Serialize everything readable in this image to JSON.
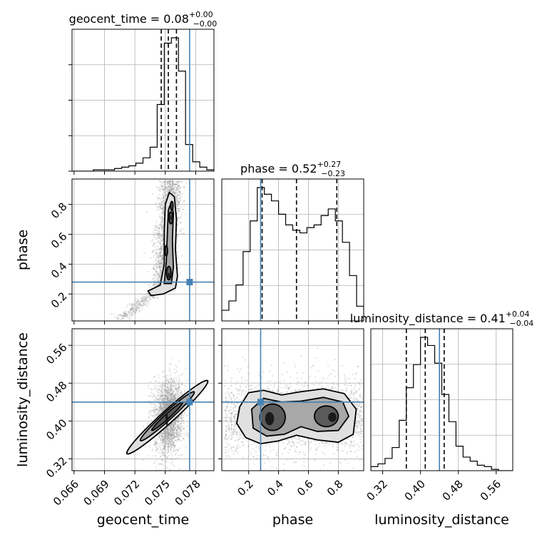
{
  "chart_data": {
    "type": "corner",
    "parameters": [
      "geocent_time",
      "phase",
      "luminosity_distance"
    ],
    "titles": [
      {
        "param": "geocent_time",
        "median": "0.08",
        "plus": "+0.00",
        "minus": "−0.00"
      },
      {
        "param": "phase",
        "median": "0.52",
        "plus": "+0.27",
        "minus": "−0.23"
      },
      {
        "param": "luminosity_distance",
        "median": "0.41",
        "plus": "+0.04",
        "minus": "−0.04"
      }
    ],
    "axes": {
      "geocent_time": {
        "range": [
          0.0658,
          0.0798
        ],
        "ticks": [
          "0.066",
          "0.069",
          "0.072",
          "0.075",
          "0.078"
        ],
        "tick_values": [
          0.066,
          0.069,
          0.072,
          0.075,
          0.078
        ]
      },
      "phase": {
        "range": [
          0.02,
          0.97
        ],
        "ticks": [
          "0.2",
          "0.4",
          "0.6",
          "0.8"
        ],
        "tick_values": [
          0.2,
          0.4,
          0.6,
          0.8
        ]
      },
      "luminosity_distance": {
        "range": [
          0.295,
          0.595
        ],
        "ticks": [
          "0.32",
          "0.40",
          "0.48",
          "0.56"
        ],
        "tick_values": [
          0.32,
          0.4,
          0.48,
          0.56
        ]
      }
    },
    "truths": {
      "geocent_time": 0.0774,
      "phase": 0.28,
      "luminosity_distance": 0.44
    },
    "quantiles": {
      "geocent_time": [
        0.0746,
        0.0753,
        0.0761
      ],
      "phase": [
        0.29,
        0.52,
        0.79
      ],
      "luminosity_distance": [
        0.37,
        0.41,
        0.45
      ]
    },
    "histograms": {
      "geocent_time": {
        "edges": [
          0.0658,
          0.0665,
          0.0672,
          0.0679,
          0.0686,
          0.0693,
          0.07,
          0.0707,
          0.0714,
          0.0721,
          0.0728,
          0.0735,
          0.0742,
          0.0749,
          0.0756,
          0.0763,
          0.077,
          0.0777,
          0.0784,
          0.0791,
          0.0798
        ],
        "counts": [
          0,
          0,
          0,
          1,
          1,
          1,
          2,
          3,
          4,
          6,
          10,
          18,
          50,
          96,
          100,
          75,
          20,
          7,
          3,
          1
        ]
      },
      "phase": {
        "edges": [
          0.02,
          0.0675,
          0.115,
          0.1625,
          0.21,
          0.2575,
          0.305,
          0.3525,
          0.4,
          0.4475,
          0.495,
          0.5425,
          0.59,
          0.6375,
          0.685,
          0.7325,
          0.78,
          0.8275,
          0.875,
          0.9225,
          0.97
        ],
        "counts": [
          8,
          15,
          27,
          52,
          75,
          100,
          95,
          90,
          80,
          72,
          68,
          66,
          70,
          72,
          79,
          84,
          75,
          59,
          34,
          11
        ]
      },
      "luminosity_distance": {
        "edges": [
          0.295,
          0.31,
          0.325,
          0.34,
          0.355,
          0.37,
          0.385,
          0.4,
          0.415,
          0.43,
          0.445,
          0.46,
          0.475,
          0.49,
          0.505,
          0.52,
          0.535,
          0.55,
          0.565,
          0.58,
          0.595
        ],
        "counts": [
          3,
          5,
          9,
          17,
          37,
          61,
          78,
          98,
          92,
          79,
          56,
          36,
          18,
          10,
          7,
          4,
          3,
          1,
          0,
          0
        ]
      }
    },
    "truth_color": "#4682b4",
    "grid": true
  }
}
